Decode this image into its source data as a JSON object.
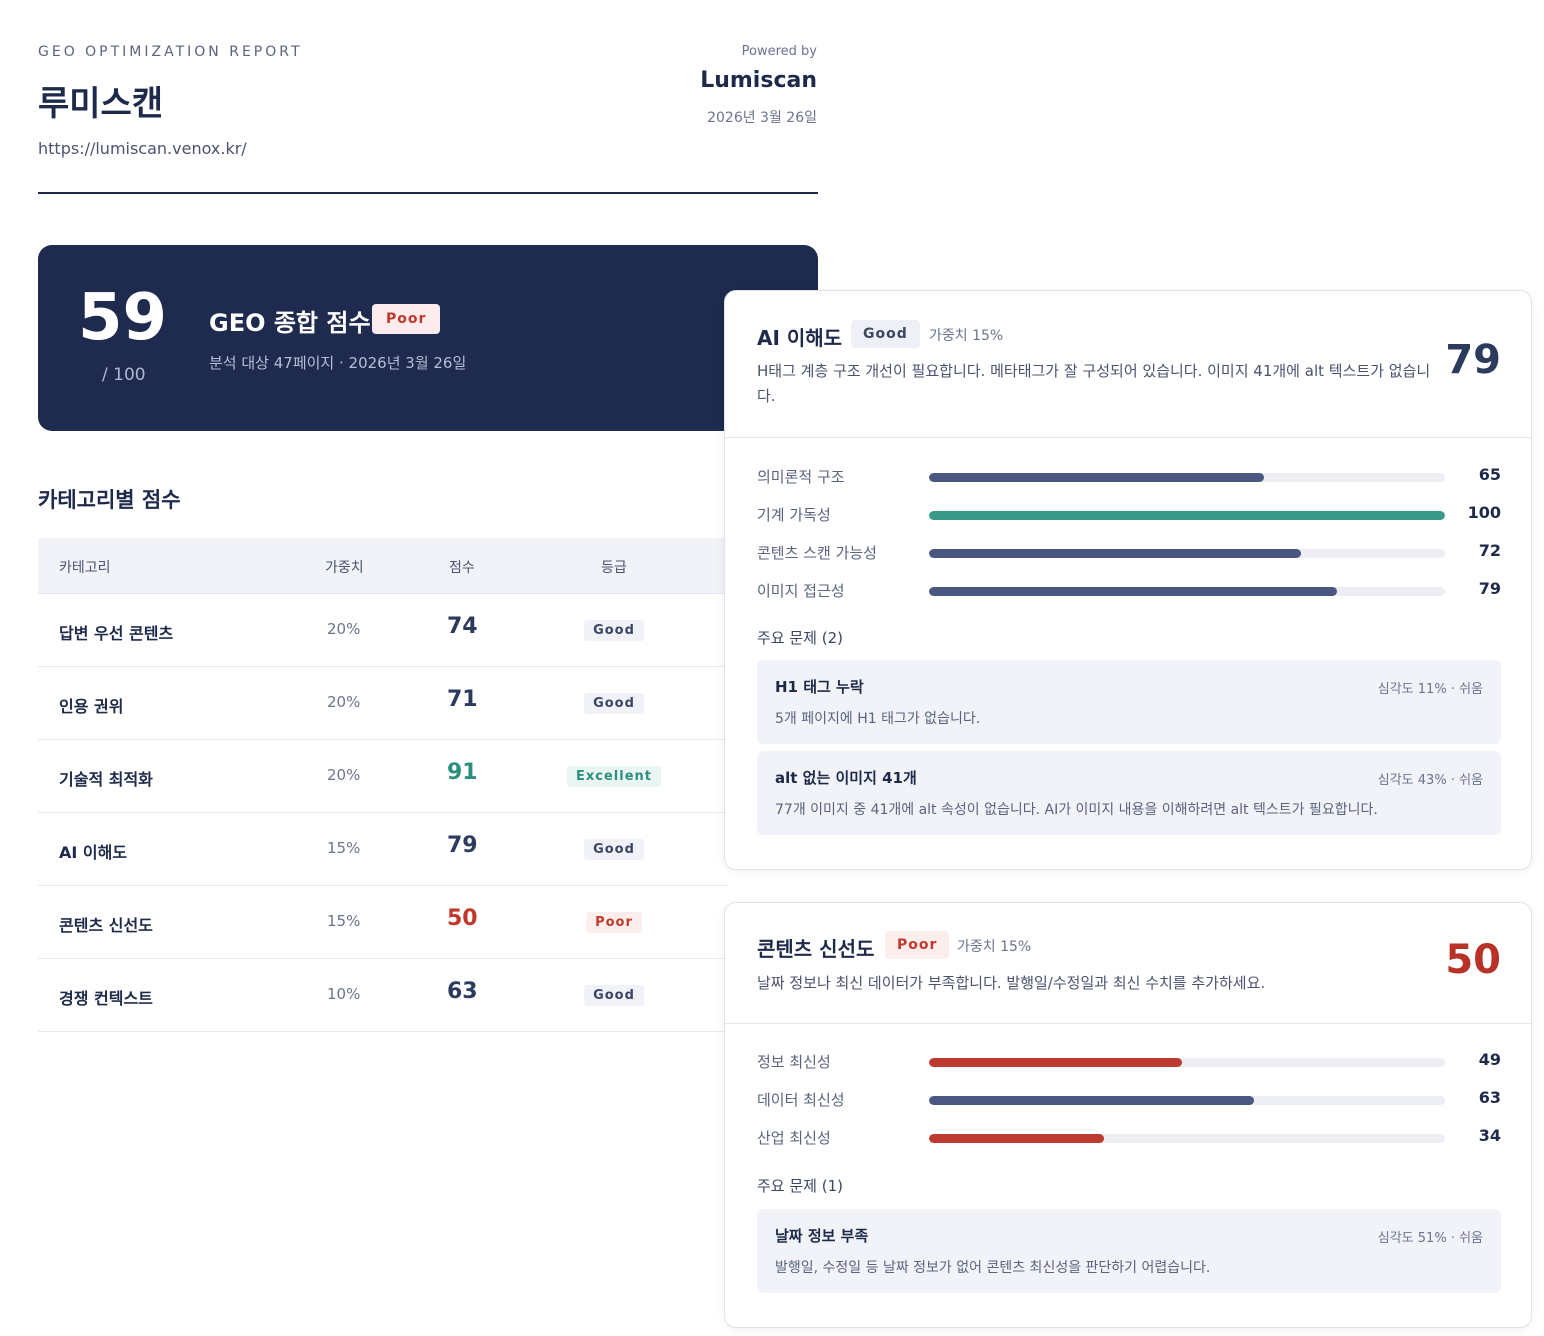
{
  "header": {
    "kicker": "GEO OPTIMIZATION REPORT",
    "site_name": "루미스캔",
    "url": "https://lumiscan.venox.kr/",
    "powered_by": "Powered by",
    "brand": "Lumiscan",
    "date": "2026년 3월 26일"
  },
  "summary": {
    "score": "59",
    "max": "/ 100",
    "title": "GEO 종합 점수",
    "grade": "Poor",
    "subtitle": "분석 대상 47페이지 · 2026년 3월 26일"
  },
  "categories": {
    "section_title": "카테고리별 점수",
    "columns": [
      "카테고리",
      "가중치",
      "점수",
      "등급"
    ],
    "rows": [
      {
        "name": "답변 우선 콘텐츠",
        "weight": "20%",
        "score": "74",
        "grade": "Good"
      },
      {
        "name": "인용 권위",
        "weight": "20%",
        "score": "71",
        "grade": "Good"
      },
      {
        "name": "기술적 최적화",
        "weight": "20%",
        "score": "91",
        "grade": "Excellent"
      },
      {
        "name": "AI 이해도",
        "weight": "15%",
        "score": "79",
        "grade": "Good"
      },
      {
        "name": "콘텐츠 신선도",
        "weight": "15%",
        "score": "50",
        "grade": "Poor"
      },
      {
        "name": "경쟁 컨텍스트",
        "weight": "10%",
        "score": "63",
        "grade": "Good"
      }
    ]
  },
  "cards": [
    {
      "name": "AI 이해도",
      "grade": "Good",
      "weight": "가중치 15%",
      "description": "H태그 계층 구조 개선이 필요합니다. 메타태그가 잘 구성되어 있습니다. 이미지 41개에 alt 텍스트가 없습니다.",
      "score": "79",
      "metrics": [
        {
          "label": "의미론적 구조",
          "value": 65,
          "display": "65",
          "color": "#4a5780"
        },
        {
          "label": "기계 가독성",
          "value": 100,
          "display": "100",
          "color": "#3a9a8a"
        },
        {
          "label": "콘텐츠 스캔 가능성",
          "value": 72,
          "display": "72",
          "color": "#4a5780"
        },
        {
          "label": "이미지 접근성",
          "value": 79,
          "display": "79",
          "color": "#4a5780"
        }
      ],
      "issues_title": "주요 문제 (2)",
      "issues": [
        {
          "title": "H1 태그 누락",
          "meta": "심각도 11% · 쉬움",
          "desc": "5개 페이지에 H1 태그가 없습니다."
        },
        {
          "title": "alt 없는 이미지 41개",
          "meta": "심각도 43% · 쉬움",
          "desc": "77개 이미지 중 41개에 alt 속성이 없습니다. AI가 이미지 내용을 이해하려면 alt 텍스트가 필요합니다."
        }
      ]
    },
    {
      "name": "콘텐츠 신선도",
      "grade": "Poor",
      "weight": "가중치 15%",
      "description": "날짜 정보나 최신 데이터가 부족합니다. 발행일/수정일과 최신 수치를 추가하세요.",
      "score": "50",
      "metrics": [
        {
          "label": "정보 최신성",
          "value": 49,
          "display": "49",
          "color": "#bd3a30"
        },
        {
          "label": "데이터 최신성",
          "value": 63,
          "display": "63",
          "color": "#4a5780"
        },
        {
          "label": "산업 최신성",
          "value": 34,
          "display": "34",
          "color": "#bd3a30"
        }
      ],
      "issues_title": "주요 문제 (1)",
      "issues": [
        {
          "title": "날짜 정보 부족",
          "meta": "심각도 51% · 쉬움",
          "desc": "발행일, 수정일 등 날짜 정보가 없어 콘텐츠 최신성을 판단하기 어렵습니다."
        }
      ]
    }
  ]
}
